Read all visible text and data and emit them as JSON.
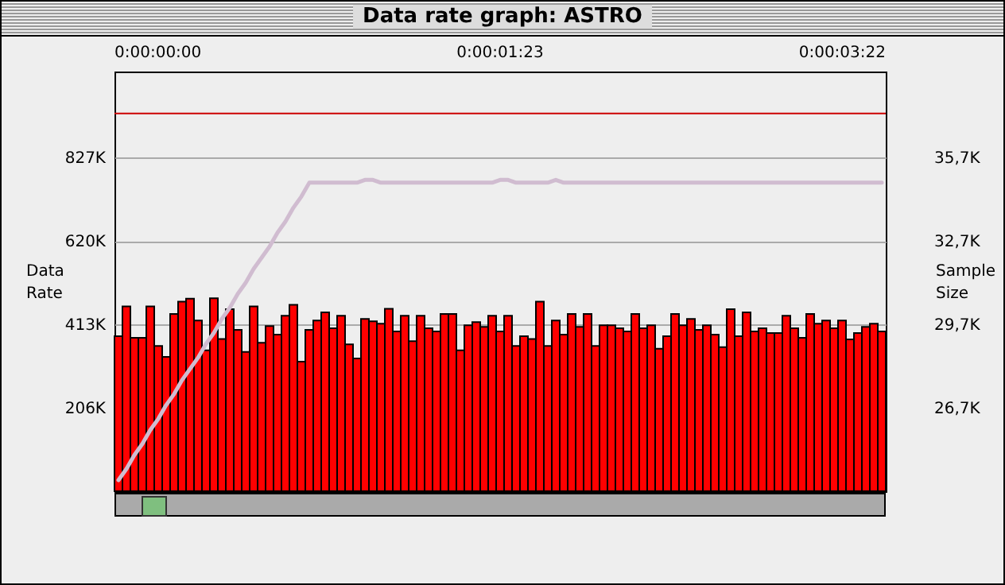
{
  "chart_data": {
    "type": "bar",
    "title": "Data rate graph: ASTRO",
    "ylabel": "Data Rate",
    "y2label": "Sample Size",
    "categories": [
      null,
      null,
      null,
      null,
      null,
      null,
      null,
      null,
      null,
      null,
      null,
      null,
      null,
      null,
      null,
      null,
      null,
      null,
      null,
      null,
      null,
      null,
      null,
      null,
      null,
      null,
      null,
      null,
      null,
      null,
      null,
      null,
      null,
      null,
      null,
      null,
      null,
      null,
      null,
      null,
      null,
      null,
      null,
      null,
      null,
      null,
      null,
      null,
      null,
      null,
      null,
      null,
      null,
      null,
      null,
      null,
      null,
      null,
      null,
      null,
      null,
      null,
      null,
      null,
      null,
      null,
      null,
      null,
      null,
      null,
      null,
      null,
      null,
      null,
      null,
      null,
      null,
      null,
      null,
      null,
      null,
      null,
      null,
      null,
      null,
      null,
      null,
      null,
      null,
      null,
      null,
      null,
      null,
      null,
      null,
      null,
      null
    ],
    "series": [
      {
        "color": "#ff0000",
        "values": [
          384,
          458,
          380,
          380,
          458,
          360,
          333,
          439,
          470,
          477,
          423,
          349,
          478,
          377,
          451,
          400,
          345,
          458,
          368,
          409,
          388,
          435,
          462,
          321,
          400,
          423,
          443,
          404,
          435,
          364,
          329,
          427,
          421,
          415,
          452,
          396,
          435,
          372,
          435,
          404,
          396,
          439,
          439,
          349,
          411,
          419,
          407,
          435,
          396,
          435,
          360,
          384,
          377,
          470,
          360,
          423,
          388,
          439,
          407,
          439,
          360,
          411,
          411,
          404,
          396,
          439,
          404,
          411,
          353,
          384,
          439,
          411,
          427,
          400,
          411,
          388,
          357,
          451,
          384,
          443,
          396,
          404,
          392,
          392,
          435,
          404,
          380,
          439,
          415,
          423,
          404,
          423,
          376,
          392,
          407,
          415,
          396
        ]
      },
      {
        "type": "line",
        "axis": "y2",
        "color": "#d0bcd0",
        "values": [
          24.1,
          24.5,
          25.0,
          25.4,
          25.9,
          26.3,
          26.8,
          27.2,
          27.7,
          28.1,
          28.5,
          29.0,
          29.4,
          29.9,
          30.3,
          30.8,
          31.2,
          31.7,
          32.1,
          32.5,
          33.0,
          33.4,
          33.9,
          34.3,
          34.8,
          34.8,
          34.8,
          34.8,
          34.8,
          34.8,
          34.8,
          34.9,
          34.9,
          34.8,
          34.8,
          34.8,
          34.8,
          34.8,
          34.8,
          34.8,
          34.8,
          34.8,
          34.8,
          34.8,
          34.8,
          34.8,
          34.8,
          34.8,
          34.9,
          34.9,
          34.8,
          34.8,
          34.8,
          34.8,
          34.8,
          34.9,
          34.8,
          34.8,
          34.8,
          34.8,
          34.8,
          34.8,
          34.8,
          34.8,
          34.8,
          34.8,
          34.8,
          34.8,
          34.8,
          34.8,
          34.8,
          34.8,
          34.8,
          34.8,
          34.8,
          34.8,
          34.8,
          34.8,
          34.8,
          34.8,
          34.8,
          34.8,
          34.8,
          34.8,
          34.8,
          34.8,
          34.8,
          34.8,
          34.8,
          34.8,
          34.8,
          34.8,
          34.8,
          34.8,
          34.8,
          34.8,
          34.8
        ]
      }
    ],
    "ylim": [
      0,
      1040
    ],
    "yticks": [
      {
        "value": 206,
        "label": "206K"
      },
      {
        "value": 413,
        "label": "413K"
      },
      {
        "value": 620,
        "label": "620K"
      },
      {
        "value": 827,
        "label": "827K"
      }
    ],
    "y2lim": [
      23.7,
      38.8
    ],
    "y2ticks": [
      {
        "value": 26.7,
        "label": "26,7K"
      },
      {
        "value": 29.7,
        "label": "29,7K"
      },
      {
        "value": 32.7,
        "label": "32,7K"
      },
      {
        "value": 35.7,
        "label": "35,7K"
      }
    ],
    "annotations": [
      "0:00:00:00",
      "0:00:01:23",
      "0:00:03:22"
    ],
    "ref_lines": [
      {
        "axis": "y",
        "value": 936,
        "color": "#cc0000"
      }
    ],
    "grid": "y"
  }
}
